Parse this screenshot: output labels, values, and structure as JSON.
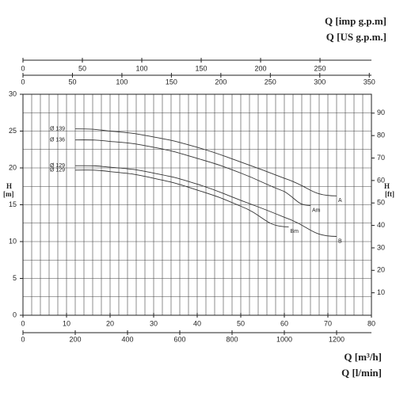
{
  "chart_data": {
    "type": "line",
    "xlabel": "Q [m³/h]",
    "xlim": [
      0,
      80
    ],
    "xticks": [
      0,
      10,
      20,
      30,
      40,
      50,
      60,
      70,
      80
    ],
    "x_lmin": {
      "label": "Q [l/min]",
      "xlim": [
        0,
        1333.33
      ],
      "xticks": [
        0,
        200,
        400,
        600,
        800,
        1000,
        1200
      ]
    },
    "x_usgpm": {
      "label": "Q [US g.p.m.]",
      "xlim": [
        0,
        352.2
      ],
      "xticks": [
        0,
        50,
        100,
        150,
        200,
        250,
        300,
        350
      ]
    },
    "x_impgpm": {
      "label": "Q [imp g.p.m]",
      "xlim": [
        0,
        293.3
      ],
      "xticks": [
        0,
        50,
        100,
        150,
        200,
        250
      ]
    },
    "ylabel": [
      "H",
      "[m]"
    ],
    "ylim": [
      0,
      30
    ],
    "yticks": [
      0,
      5,
      10,
      15,
      20,
      25,
      30
    ],
    "y2label": [
      "H",
      "[ft]"
    ],
    "y2lim": [
      0,
      98.4
    ],
    "y2ticks": [
      10,
      20,
      30,
      40,
      50,
      60,
      70,
      80,
      90
    ],
    "grid": {
      "x_step": 2,
      "y_step": 2.5
    },
    "series": [
      {
        "name": "Ø 139",
        "end_label": "A",
        "color": "#333333",
        "x": [
          12,
          20,
          30,
          40,
          50,
          60,
          72
        ],
        "values": [
          25.3,
          25.0,
          24.2,
          22.8,
          20.8,
          18.6,
          16.2
        ]
      },
      {
        "name": "Ø 136",
        "end_label": "Am",
        "color": "#333333",
        "x": [
          12,
          20,
          30,
          40,
          50,
          60,
          66
        ],
        "values": [
          23.8,
          23.6,
          22.8,
          21.3,
          19.3,
          16.8,
          14.9
        ]
      },
      {
        "name": "Ø 129",
        "end_label": "B",
        "color": "#333333",
        "x": [
          12,
          20,
          30,
          40,
          50,
          60,
          72
        ],
        "values": [
          20.3,
          20.1,
          19.3,
          17.8,
          15.6,
          13.3,
          10.7
        ]
      },
      {
        "name": "Ø 129",
        "end_label": "Bm",
        "color": "#333333",
        "x": [
          12,
          20,
          30,
          40,
          50,
          61
        ],
        "values": [
          19.7,
          19.5,
          18.6,
          17.0,
          14.8,
          12.0
        ]
      }
    ]
  }
}
